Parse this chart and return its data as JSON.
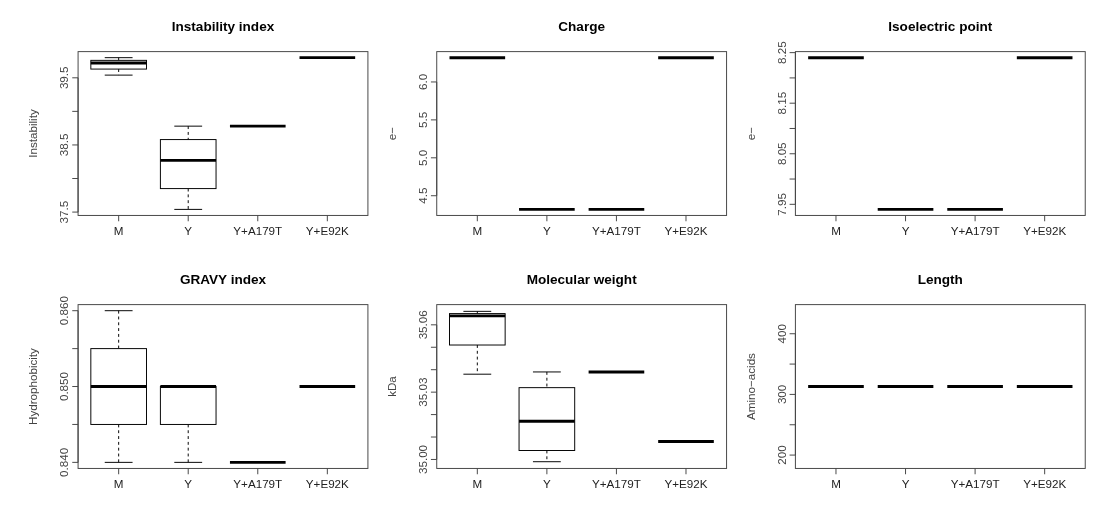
{
  "chart_data": [
    {
      "type": "box",
      "title": "Instability index",
      "ylabel": "Instability",
      "categories": [
        "M",
        "Y",
        "Y+A179T",
        "Y+E92K"
      ],
      "ylim": [
        37.45,
        39.89
      ],
      "yticks": [
        37.5,
        {
          "value": 38,
          "label": null
        },
        38.5,
        {
          "value": 39,
          "label": null
        },
        39.5
      ],
      "boxes": [
        {
          "low": 39.54,
          "q1": 39.63,
          "median": 39.72,
          "q3": 39.76,
          "high": 39.8
        },
        {
          "low": 37.54,
          "q1": 37.85,
          "median": 38.27,
          "q3": 38.58,
          "high": 38.78
        },
        {
          "low": 38.78,
          "q1": 38.78,
          "median": 38.78,
          "q3": 38.78,
          "high": 38.78
        },
        {
          "low": 39.8,
          "q1": 39.8,
          "median": 39.8,
          "q3": 39.8,
          "high": 39.8
        }
      ]
    },
    {
      "type": "box",
      "title": "Charge",
      "ylabel": "e−",
      "categories": [
        "M",
        "Y",
        "Y+A179T",
        "Y+E92K"
      ],
      "ylim": [
        4.24,
        6.4
      ],
      "yticks": [
        4.5,
        "5.0",
        5.5,
        "6.0"
      ],
      "boxes": [
        {
          "low": 6.32,
          "q1": 6.32,
          "median": 6.32,
          "q3": 6.32,
          "high": 6.32
        },
        {
          "low": 4.32,
          "q1": 4.32,
          "median": 4.32,
          "q3": 4.32,
          "high": 4.32
        },
        {
          "low": 4.32,
          "q1": 4.32,
          "median": 4.32,
          "q3": 4.32,
          "high": 4.32
        },
        {
          "low": 6.32,
          "q1": 6.32,
          "median": 6.32,
          "q3": 6.32,
          "high": 6.32
        }
      ]
    },
    {
      "type": "box",
      "title": "Isoelectric point",
      "ylabel": "e−",
      "categories": [
        "M",
        "Y",
        "Y+A179T",
        "Y+E92K"
      ],
      "ylim": [
        7.928,
        8.252
      ],
      "yticks": [
        7.95,
        {
          "value": 8,
          "label": null
        },
        8.05,
        {
          "value": 8.1,
          "label": null
        },
        8.15,
        {
          "value": 8.2,
          "label": null
        },
        8.25
      ],
      "boxes": [
        {
          "low": 8.24,
          "q1": 8.24,
          "median": 8.24,
          "q3": 8.24,
          "high": 8.24
        },
        {
          "low": 7.94,
          "q1": 7.94,
          "median": 7.94,
          "q3": 7.94,
          "high": 7.94
        },
        {
          "low": 7.94,
          "q1": 7.94,
          "median": 7.94,
          "q3": 7.94,
          "high": 7.94
        },
        {
          "low": 8.24,
          "q1": 8.24,
          "median": 8.24,
          "q3": 8.24,
          "high": 8.24
        }
      ]
    },
    {
      "type": "box",
      "title": "GRAVY index",
      "ylabel": "Hydrophobicity",
      "categories": [
        "M",
        "Y",
        "Y+A179T",
        "Y+E92K"
      ],
      "ylim": [
        0.8392,
        0.8608
      ],
      "yticks": [
        {
          "value": 0.84,
          "label": "0.840"
        },
        {
          "value": 0.845,
          "label": null
        },
        {
          "value": 0.85,
          "label": "0.850"
        },
        {
          "value": 0.855,
          "label": null
        },
        {
          "value": 0.86,
          "label": "0.860"
        }
      ],
      "boxes": [
        {
          "low": 0.84,
          "q1": 0.845,
          "median": 0.85,
          "q3": 0.855,
          "high": 0.86
        },
        {
          "low": 0.84,
          "q1": 0.845,
          "median": 0.85,
          "q3": 0.85,
          "high": 0.85
        },
        {
          "low": 0.84,
          "q1": 0.84,
          "median": 0.84,
          "q3": 0.84,
          "high": 0.84
        },
        {
          "low": 0.85,
          "q1": 0.85,
          "median": 0.85,
          "q3": 0.85,
          "high": 0.85
        }
      ]
    },
    {
      "type": "box",
      "title": "Molecular weight",
      "ylabel": "kDa",
      "categories": [
        "M",
        "Y",
        "Y+A179T",
        "Y+E92K"
      ],
      "ylim": [
        34.996,
        35.069
      ],
      "yticks": [
        {
          "value": 35,
          "label": "35.00"
        },
        {
          "value": 35.01,
          "label": null
        },
        {
          "value": 35.02,
          "label": null
        },
        35.03,
        {
          "value": 35.04,
          "label": null
        },
        {
          "value": 35.05,
          "label": null
        },
        35.06
      ],
      "boxes": [
        {
          "low": 35.038,
          "q1": 35.051,
          "median": 35.064,
          "q3": 35.065,
          "high": 35.066
        },
        {
          "low": 34.999,
          "q1": 35.004,
          "median": 35.017,
          "q3": 35.032,
          "high": 35.039
        },
        {
          "low": 35.039,
          "q1": 35.039,
          "median": 35.039,
          "q3": 35.039,
          "high": 35.039
        },
        {
          "low": 35.008,
          "q1": 35.008,
          "median": 35.008,
          "q3": 35.008,
          "high": 35.008
        }
      ]
    },
    {
      "type": "box",
      "title": "Length",
      "ylabel": "Amino−acids",
      "categories": [
        "M",
        "Y",
        "Y+A179T",
        "Y+E92K"
      ],
      "ylim": [
        178,
        448
      ],
      "yticks": [
        200,
        {
          "value": 250,
          "label": null
        },
        300,
        {
          "value": 350,
          "label": null
        },
        400
      ],
      "boxes": [
        {
          "low": 313,
          "q1": 313,
          "median": 313,
          "q3": 313,
          "high": 313
        },
        {
          "low": 313,
          "q1": 313,
          "median": 313,
          "q3": 313,
          "high": 313
        },
        {
          "low": 313,
          "q1": 313,
          "median": 313,
          "q3": 313,
          "high": 313
        },
        {
          "low": 313,
          "q1": 313,
          "median": 313,
          "q3": 313,
          "high": 313
        }
      ]
    }
  ]
}
